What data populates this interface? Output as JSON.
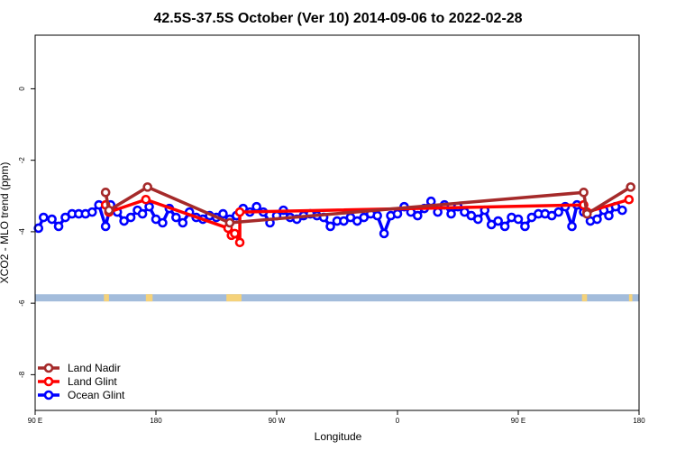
{
  "chart_data": {
    "type": "line",
    "title": "42.5S-37.5S October (Ver 10)   2014-09-06 to 2022-02-28",
    "xlabel": "Longitude",
    "ylabel": "XCO2 - MLO trend (ppm)",
    "xlim": [
      90,
      450
    ],
    "ylim": [
      -9,
      1.5
    ],
    "x_ticks": [
      {
        "value": 90,
        "label": "90 E"
      },
      {
        "value": 162,
        "label": "180"
      },
      {
        "value": 234,
        "label": "90 W"
      },
      {
        "value": 306,
        "label": "0"
      },
      {
        "value": 378,
        "label": "90 E"
      },
      {
        "value": 450,
        "label": "180"
      }
    ],
    "y_ticks": [
      {
        "value": 0,
        "label": "0"
      },
      {
        "value": -2,
        "label": "-2"
      },
      {
        "value": -4,
        "label": "-4"
      },
      {
        "value": -6,
        "label": "-6"
      },
      {
        "value": -8,
        "label": "-8"
      }
    ],
    "grid": false,
    "legend_position": "bottom-left",
    "series": [
      {
        "name": "Land Nadir",
        "color": "#a52a2a",
        "points": [
          [
            132,
            -2.9
          ],
          [
            134,
            -3.4
          ],
          [
            157,
            -2.75
          ],
          [
            206,
            -3.75
          ],
          [
            417,
            -2.9
          ],
          [
            419,
            -3.5
          ],
          [
            445,
            -2.75
          ]
        ]
      },
      {
        "name": "Land Glint",
        "color": "#ff0000",
        "points": [
          [
            132,
            -3.25
          ],
          [
            134,
            -3.45
          ],
          [
            156,
            -3.1
          ],
          [
            205,
            -3.9
          ],
          [
            207,
            -4.1
          ],
          [
            209,
            -4.05
          ],
          [
            212,
            -4.3
          ],
          [
            212,
            -3.45
          ],
          [
            417,
            -3.25
          ],
          [
            419,
            -3.45
          ],
          [
            444,
            -3.1
          ]
        ]
      },
      {
        "name": "Ocean Glint",
        "color": "#0000ff",
        "points": [
          [
            92,
            -3.9
          ],
          [
            95,
            -3.6
          ],
          [
            100,
            -3.65
          ],
          [
            104,
            -3.85
          ],
          [
            108,
            -3.6
          ],
          [
            112,
            -3.5
          ],
          [
            116,
            -3.5
          ],
          [
            120,
            -3.5
          ],
          [
            124,
            -3.45
          ],
          [
            128,
            -3.25
          ],
          [
            132,
            -3.85
          ],
          [
            135,
            -3.25
          ],
          [
            139,
            -3.45
          ],
          [
            143,
            -3.7
          ],
          [
            147,
            -3.6
          ],
          [
            151,
            -3.4
          ],
          [
            154,
            -3.5
          ],
          [
            158,
            -3.3
          ],
          [
            162,
            -3.65
          ],
          [
            166,
            -3.75
          ],
          [
            170,
            -3.35
          ],
          [
            174,
            -3.6
          ],
          [
            178,
            -3.75
          ],
          [
            182,
            -3.45
          ],
          [
            186,
            -3.6
          ],
          [
            190,
            -3.65
          ],
          [
            194,
            -3.55
          ],
          [
            198,
            -3.6
          ],
          [
            202,
            -3.5
          ],
          [
            206,
            -3.65
          ],
          [
            210,
            -3.55
          ],
          [
            214,
            -3.35
          ],
          [
            218,
            -3.45
          ],
          [
            222,
            -3.3
          ],
          [
            226,
            -3.45
          ],
          [
            230,
            -3.75
          ],
          [
            234,
            -3.55
          ],
          [
            238,
            -3.4
          ],
          [
            242,
            -3.6
          ],
          [
            246,
            -3.65
          ],
          [
            250,
            -3.55
          ],
          [
            254,
            -3.5
          ],
          [
            258,
            -3.55
          ],
          [
            262,
            -3.6
          ],
          [
            266,
            -3.85
          ],
          [
            270,
            -3.7
          ],
          [
            274,
            -3.7
          ],
          [
            278,
            -3.6
          ],
          [
            282,
            -3.7
          ],
          [
            286,
            -3.6
          ],
          [
            290,
            -3.5
          ],
          [
            294,
            -3.55
          ],
          [
            298,
            -4.05
          ],
          [
            302,
            -3.55
          ],
          [
            306,
            -3.5
          ],
          [
            310,
            -3.3
          ],
          [
            314,
            -3.45
          ],
          [
            318,
            -3.55
          ],
          [
            322,
            -3.35
          ],
          [
            326,
            -3.15
          ],
          [
            330,
            -3.45
          ],
          [
            334,
            -3.25
          ],
          [
            338,
            -3.5
          ],
          [
            342,
            -3.3
          ],
          [
            346,
            -3.45
          ],
          [
            350,
            -3.55
          ],
          [
            354,
            -3.65
          ],
          [
            358,
            -3.4
          ],
          [
            362,
            -3.8
          ],
          [
            366,
            -3.7
          ],
          [
            370,
            -3.85
          ],
          [
            374,
            -3.6
          ],
          [
            378,
            -3.65
          ],
          [
            382,
            -3.85
          ],
          [
            386,
            -3.6
          ],
          [
            390,
            -3.5
          ],
          [
            394,
            -3.5
          ],
          [
            398,
            -3.55
          ],
          [
            402,
            -3.45
          ],
          [
            406,
            -3.3
          ],
          [
            410,
            -3.85
          ],
          [
            413,
            -3.25
          ],
          [
            417,
            -3.45
          ],
          [
            421,
            -3.7
          ],
          [
            425,
            -3.65
          ],
          [
            429,
            -3.4
          ],
          [
            432,
            -3.55
          ],
          [
            436,
            -3.3
          ],
          [
            440,
            -3.4
          ]
        ]
      }
    ],
    "surface_strip": {
      "y_range": [
        -5.95,
        -5.75
      ],
      "ocean_color": "#a3bcdb",
      "land_color": "#f5d27a",
      "land_segments": [
        [
          131,
          134
        ],
        [
          156,
          160
        ],
        [
          204,
          213
        ],
        [
          416,
          419
        ],
        [
          444,
          446
        ]
      ]
    }
  }
}
